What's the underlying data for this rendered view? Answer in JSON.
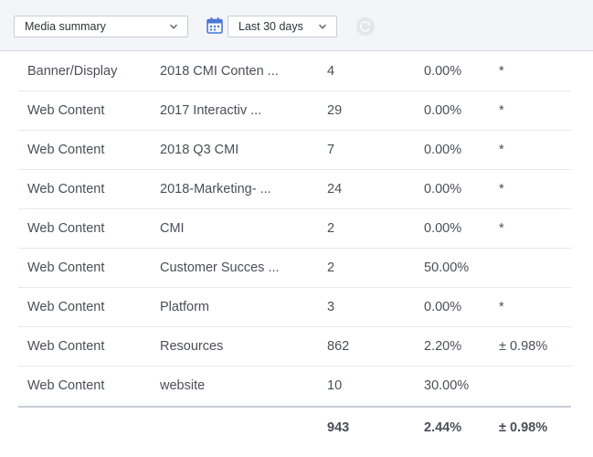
{
  "toolbar": {
    "media_select_value": "Media summary",
    "date_select_value": "Last 30 days"
  },
  "table": {
    "rows": [
      {
        "media": "Banner/Display",
        "campaign": "2018 CMI Conten ...",
        "count": "4",
        "rate": "0.00%",
        "margin": "*"
      },
      {
        "media": "Web Content",
        "campaign": "2017 Interactiv ...",
        "count": "29",
        "rate": "0.00%",
        "margin": "*"
      },
      {
        "media": "Web Content",
        "campaign": "2018 Q3 CMI",
        "count": "7",
        "rate": "0.00%",
        "margin": "*"
      },
      {
        "media": "Web Content",
        "campaign": "2018-Marketing- ...",
        "count": "24",
        "rate": "0.00%",
        "margin": "*"
      },
      {
        "media": "Web Content",
        "campaign": "CMI",
        "count": "2",
        "rate": "0.00%",
        "margin": "*"
      },
      {
        "media": "Web Content",
        "campaign": "Customer Succes ...",
        "count": "2",
        "rate": "50.00%",
        "margin": ""
      },
      {
        "media": "Web Content",
        "campaign": "Platform",
        "count": "3",
        "rate": "0.00%",
        "margin": "*"
      },
      {
        "media": "Web Content",
        "campaign": "Resources",
        "count": "862",
        "rate": "2.20%",
        "margin": "± 0.98%"
      },
      {
        "media": "Web Content",
        "campaign": "website",
        "count": "10",
        "rate": "30.00%",
        "margin": ""
      }
    ],
    "total": {
      "count": "943",
      "rate": "2.44%",
      "margin": "± 0.98%"
    }
  },
  "colors": {
    "accent": "#4a78d6",
    "toolbar_bg": "#f4f5f8",
    "row_border": "#e6e8ec"
  },
  "icons": {
    "calendar": "calendar-icon",
    "refresh": "refresh-icon",
    "chevron": "chevron-down-icon"
  }
}
